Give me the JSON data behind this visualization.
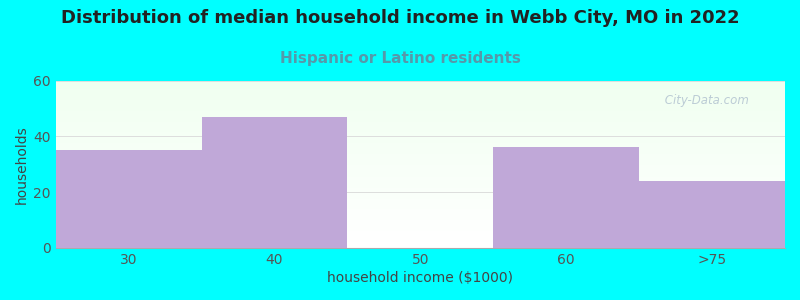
{
  "title": "Distribution of median household income in Webb City, MO in 2022",
  "subtitle": "Hispanic or Latino residents",
  "xlabel": "household income ($1000)",
  "ylabel": "households",
  "background_color": "#00FFFF",
  "bar_color": "#c0a8d8",
  "categories": [
    "30",
    "40",
    "50",
    "60",
    ">75"
  ],
  "values": [
    35,
    47,
    0,
    36,
    24
  ],
  "ylim": [
    0,
    60
  ],
  "yticks": [
    0,
    20,
    40,
    60
  ],
  "title_fontsize": 13,
  "subtitle_fontsize": 11,
  "subtitle_color": "#5599aa",
  "axis_label_fontsize": 10,
  "tick_fontsize": 10,
  "watermark_text": " City-Data.com",
  "watermark_color": "#aabbcc",
  "n_bars": 5,
  "bar_width": 1.0
}
